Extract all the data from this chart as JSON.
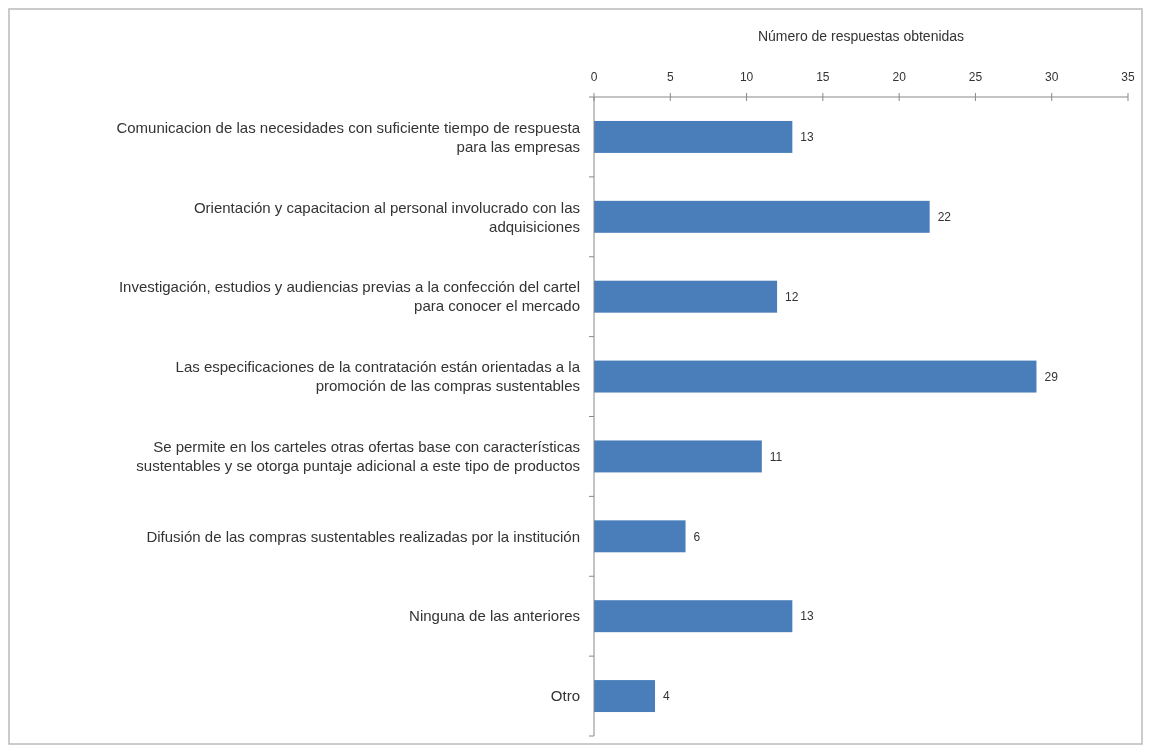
{
  "chart_data": {
    "type": "bar",
    "orientation": "horizontal",
    "xlabel": "Número de respuestas obtenidas",
    "categories": [
      "Comunicacion de las necesidades con suficiente tiempo de respuesta para las empresas",
      "Orientación y capacitacion al personal involucrado con las adquisiciones",
      "Investigación, estudios y audiencias previas a la confección del cartel para conocer el mercado",
      "Las especificaciones de la contratación están orientadas a la promoción de las compras sustentables",
      "Se permite en los carteles otras ofertas base con características sustentables y se otorga puntaje adicional a este tipo de productos",
      "Difusión de las compras sustentables realizadas por la institución",
      "Ninguna de las anteriores",
      "Otro"
    ],
    "values": [
      13,
      22,
      12,
      29,
      11,
      6,
      13,
      4
    ],
    "color": "#4a7ebb",
    "xlim": [
      0,
      35
    ],
    "xticks": [
      0,
      5,
      10,
      15,
      20,
      25,
      30,
      35
    ],
    "data_labels": true,
    "grid": false
  }
}
